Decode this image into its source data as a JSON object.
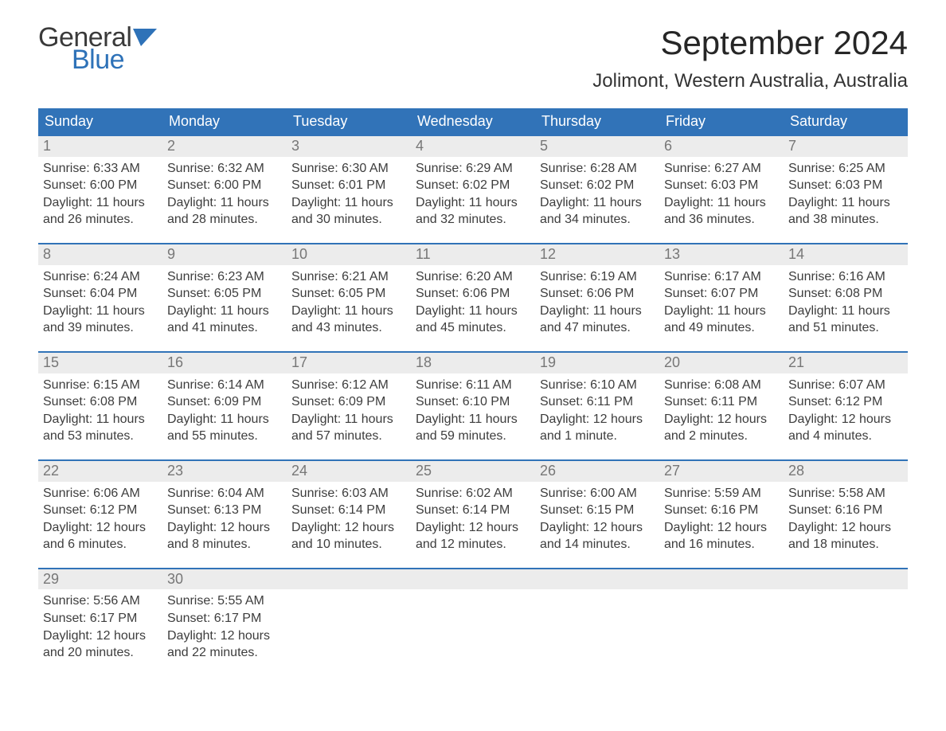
{
  "logo": {
    "text1": "General",
    "text2": "Blue",
    "text1_color": "#3a3a3a",
    "text2_color": "#2e72b8",
    "flag_color": "#2e72b8"
  },
  "title": "September 2024",
  "location": "Jolimont, Western Australia, Australia",
  "colors": {
    "header_bg": "#3173b8",
    "header_text": "#ffffff",
    "daynum_bg": "#ececec",
    "daynum_border": "#3173b8",
    "daynum_text": "#777777",
    "body_text": "#3d3d3d",
    "page_bg": "#ffffff"
  },
  "typography": {
    "title_fontsize": 42,
    "location_fontsize": 24,
    "header_fontsize": 18,
    "daynum_fontsize": 18,
    "body_fontsize": 16,
    "logo_fontsize": 34
  },
  "weekdays": [
    "Sunday",
    "Monday",
    "Tuesday",
    "Wednesday",
    "Thursday",
    "Friday",
    "Saturday"
  ],
  "weeks": [
    [
      {
        "n": "1",
        "sunrise": "6:33 AM",
        "sunset": "6:00 PM",
        "daylight": "11 hours and 26 minutes."
      },
      {
        "n": "2",
        "sunrise": "6:32 AM",
        "sunset": "6:00 PM",
        "daylight": "11 hours and 28 minutes."
      },
      {
        "n": "3",
        "sunrise": "6:30 AM",
        "sunset": "6:01 PM",
        "daylight": "11 hours and 30 minutes."
      },
      {
        "n": "4",
        "sunrise": "6:29 AM",
        "sunset": "6:02 PM",
        "daylight": "11 hours and 32 minutes."
      },
      {
        "n": "5",
        "sunrise": "6:28 AM",
        "sunset": "6:02 PM",
        "daylight": "11 hours and 34 minutes."
      },
      {
        "n": "6",
        "sunrise": "6:27 AM",
        "sunset": "6:03 PM",
        "daylight": "11 hours and 36 minutes."
      },
      {
        "n": "7",
        "sunrise": "6:25 AM",
        "sunset": "6:03 PM",
        "daylight": "11 hours and 38 minutes."
      }
    ],
    [
      {
        "n": "8",
        "sunrise": "6:24 AM",
        "sunset": "6:04 PM",
        "daylight": "11 hours and 39 minutes."
      },
      {
        "n": "9",
        "sunrise": "6:23 AM",
        "sunset": "6:05 PM",
        "daylight": "11 hours and 41 minutes."
      },
      {
        "n": "10",
        "sunrise": "6:21 AM",
        "sunset": "6:05 PM",
        "daylight": "11 hours and 43 minutes."
      },
      {
        "n": "11",
        "sunrise": "6:20 AM",
        "sunset": "6:06 PM",
        "daylight": "11 hours and 45 minutes."
      },
      {
        "n": "12",
        "sunrise": "6:19 AM",
        "sunset": "6:06 PM",
        "daylight": "11 hours and 47 minutes."
      },
      {
        "n": "13",
        "sunrise": "6:17 AM",
        "sunset": "6:07 PM",
        "daylight": "11 hours and 49 minutes."
      },
      {
        "n": "14",
        "sunrise": "6:16 AM",
        "sunset": "6:08 PM",
        "daylight": "11 hours and 51 minutes."
      }
    ],
    [
      {
        "n": "15",
        "sunrise": "6:15 AM",
        "sunset": "6:08 PM",
        "daylight": "11 hours and 53 minutes."
      },
      {
        "n": "16",
        "sunrise": "6:14 AM",
        "sunset": "6:09 PM",
        "daylight": "11 hours and 55 minutes."
      },
      {
        "n": "17",
        "sunrise": "6:12 AM",
        "sunset": "6:09 PM",
        "daylight": "11 hours and 57 minutes."
      },
      {
        "n": "18",
        "sunrise": "6:11 AM",
        "sunset": "6:10 PM",
        "daylight": "11 hours and 59 minutes."
      },
      {
        "n": "19",
        "sunrise": "6:10 AM",
        "sunset": "6:11 PM",
        "daylight": "12 hours and 1 minute."
      },
      {
        "n": "20",
        "sunrise": "6:08 AM",
        "sunset": "6:11 PM",
        "daylight": "12 hours and 2 minutes."
      },
      {
        "n": "21",
        "sunrise": "6:07 AM",
        "sunset": "6:12 PM",
        "daylight": "12 hours and 4 minutes."
      }
    ],
    [
      {
        "n": "22",
        "sunrise": "6:06 AM",
        "sunset": "6:12 PM",
        "daylight": "12 hours and 6 minutes."
      },
      {
        "n": "23",
        "sunrise": "6:04 AM",
        "sunset": "6:13 PM",
        "daylight": "12 hours and 8 minutes."
      },
      {
        "n": "24",
        "sunrise": "6:03 AM",
        "sunset": "6:14 PM",
        "daylight": "12 hours and 10 minutes."
      },
      {
        "n": "25",
        "sunrise": "6:02 AM",
        "sunset": "6:14 PM",
        "daylight": "12 hours and 12 minutes."
      },
      {
        "n": "26",
        "sunrise": "6:00 AM",
        "sunset": "6:15 PM",
        "daylight": "12 hours and 14 minutes."
      },
      {
        "n": "27",
        "sunrise": "5:59 AM",
        "sunset": "6:16 PM",
        "daylight": "12 hours and 16 minutes."
      },
      {
        "n": "28",
        "sunrise": "5:58 AM",
        "sunset": "6:16 PM",
        "daylight": "12 hours and 18 minutes."
      }
    ],
    [
      {
        "n": "29",
        "sunrise": "5:56 AM",
        "sunset": "6:17 PM",
        "daylight": "12 hours and 20 minutes."
      },
      {
        "n": "30",
        "sunrise": "5:55 AM",
        "sunset": "6:17 PM",
        "daylight": "12 hours and 22 minutes."
      },
      {
        "n": "",
        "empty": true
      },
      {
        "n": "",
        "empty": true
      },
      {
        "n": "",
        "empty": true
      },
      {
        "n": "",
        "empty": true
      },
      {
        "n": "",
        "empty": true
      }
    ]
  ],
  "labels": {
    "sunrise_prefix": "Sunrise: ",
    "sunset_prefix": "Sunset: ",
    "daylight_prefix": "Daylight: "
  }
}
